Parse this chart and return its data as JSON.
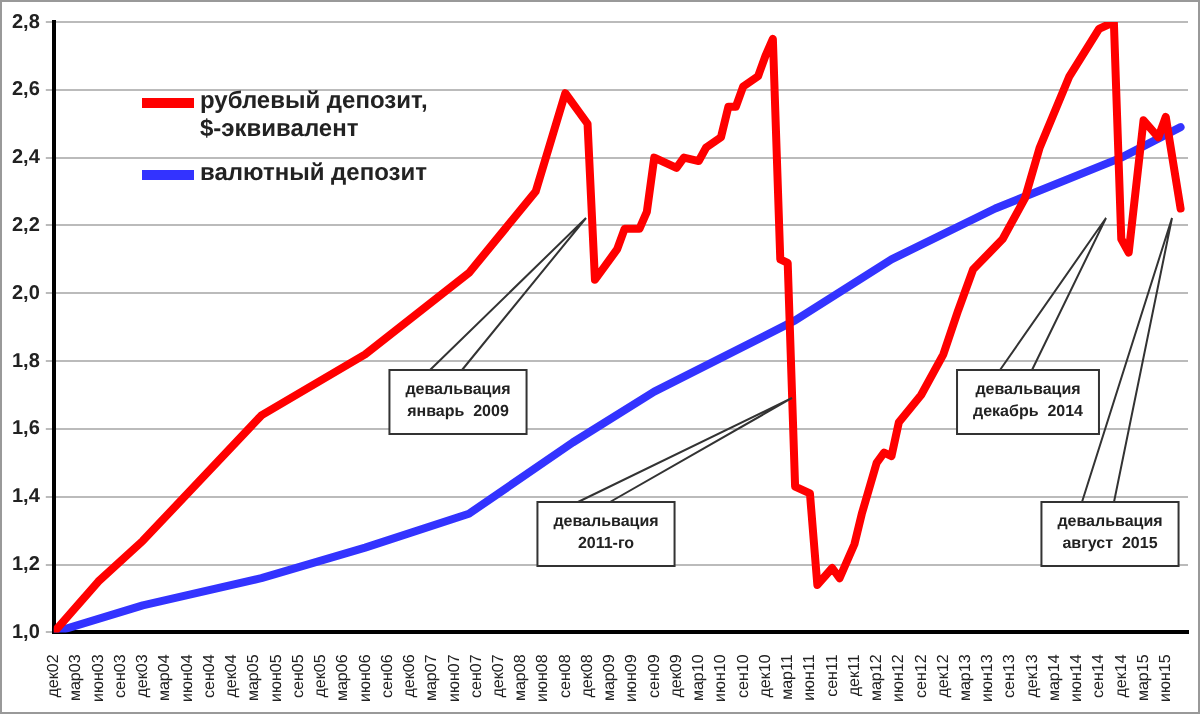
{
  "chart_data": {
    "type": "line",
    "legend": "top left",
    "grid": "y",
    "marker": "none",
    "line_style": "solid",
    "xlim": [
      "2002-12",
      "2015-09"
    ],
    "xticks": [
      {
        "value": "2002-12",
        "label": "дек02"
      },
      {
        "value": "2003-03",
        "label": "мар03"
      },
      {
        "value": "2003-06",
        "label": "июн03"
      },
      {
        "value": "2003-09",
        "label": "сен03"
      },
      {
        "value": "2003-12",
        "label": "дек03"
      },
      {
        "value": "2004-03",
        "label": "мар04"
      },
      {
        "value": "2004-06",
        "label": "июн04"
      },
      {
        "value": "2004-09",
        "label": "сен04"
      },
      {
        "value": "2004-12",
        "label": "дек04"
      },
      {
        "value": "2005-03",
        "label": "мар05"
      },
      {
        "value": "2005-06",
        "label": "июн05"
      },
      {
        "value": "2005-09",
        "label": "сен05"
      },
      {
        "value": "2005-12",
        "label": "дек05"
      },
      {
        "value": "2006-03",
        "label": "мар06"
      },
      {
        "value": "2006-06",
        "label": "июн06"
      },
      {
        "value": "2006-09",
        "label": "сен06"
      },
      {
        "value": "2006-12",
        "label": "дек06"
      },
      {
        "value": "2007-03",
        "label": "мар07"
      },
      {
        "value": "2007-06",
        "label": "июн07"
      },
      {
        "value": "2007-09",
        "label": "сен07"
      },
      {
        "value": "2007-12",
        "label": "дек07"
      },
      {
        "value": "2008-03",
        "label": "мар08"
      },
      {
        "value": "2008-06",
        "label": "июн08"
      },
      {
        "value": "2008-09",
        "label": "сен08"
      },
      {
        "value": "2008-12",
        "label": "дек08"
      },
      {
        "value": "2009-03",
        "label": "мар09"
      },
      {
        "value": "2009-06",
        "label": "июн09"
      },
      {
        "value": "2009-09",
        "label": "сен09"
      },
      {
        "value": "2009-12",
        "label": "дек09"
      },
      {
        "value": "2010-03",
        "label": "мар10"
      },
      {
        "value": "2010-06",
        "label": "июн10"
      },
      {
        "value": "2010-09",
        "label": "сен10"
      },
      {
        "value": "2010-12",
        "label": "дек10"
      },
      {
        "value": "2011-03",
        "label": "мар11"
      },
      {
        "value": "2011-06",
        "label": "июн11"
      },
      {
        "value": "2011-09",
        "label": "сен11"
      },
      {
        "value": "2011-12",
        "label": "дек11"
      },
      {
        "value": "2012-03",
        "label": "мар12"
      },
      {
        "value": "2012-06",
        "label": "июн12"
      },
      {
        "value": "2012-09",
        "label": "сен12"
      },
      {
        "value": "2012-12",
        "label": "дек12"
      },
      {
        "value": "2013-03",
        "label": "мар13"
      },
      {
        "value": "2013-06",
        "label": "июн13"
      },
      {
        "value": "2013-09",
        "label": "сен13"
      },
      {
        "value": "2013-12",
        "label": "дек13"
      },
      {
        "value": "2014-03",
        "label": "мар14"
      },
      {
        "value": "2014-06",
        "label": "июн14"
      },
      {
        "value": "2014-09",
        "label": "сен14"
      },
      {
        "value": "2014-12",
        "label": "дек14"
      },
      {
        "value": "2015-03",
        "label": "мар15"
      },
      {
        "value": "2015-06",
        "label": "июн15"
      }
    ],
    "ylim": [
      1.0,
      2.8
    ],
    "yticks": [
      {
        "value": 1,
        "label": "1,0"
      },
      {
        "value": 1.2,
        "label": "1,2"
      },
      {
        "value": 1.4,
        "label": "1,4"
      },
      {
        "value": 1.6,
        "label": "1,6"
      },
      {
        "value": 1.8,
        "label": "1,8"
      },
      {
        "value": 2,
        "label": "2,0"
      },
      {
        "value": 2.2,
        "label": "2,2"
      },
      {
        "value": 2.4,
        "label": "2,4"
      },
      {
        "value": 2.6,
        "label": "2,6"
      },
      {
        "value": 2.8,
        "label": "2,8"
      }
    ],
    "series": [
      {
        "name": "рублевый депозит, $-эквивалент",
        "color": "#ff0000",
        "x": [
          "2002-12",
          "2003-06",
          "2003-12",
          "2005-04",
          "2006-06",
          "2007-08",
          "2008-05",
          "2008-09",
          "2008-12",
          "2009-01",
          "2009-04",
          "2009-05",
          "2009-07",
          "2009-08",
          "2009-09",
          "2009-12",
          "2010-01",
          "2010-03",
          "2010-04",
          "2010-06",
          "2010-07",
          "2010-08",
          "2010-09",
          "2010-11",
          "2010-12",
          "2011-01",
          "2011-02",
          "2011-03",
          "2011-04",
          "2011-06",
          "2011-07",
          "2011-09",
          "2011-10",
          "2011-12",
          "2012-01",
          "2012-03",
          "2012-04",
          "2012-05",
          "2012-06",
          "2012-09",
          "2012-12",
          "2013-02",
          "2013-04",
          "2013-08",
          "2013-11",
          "2014-01",
          "2014-05",
          "2014-09",
          "2014-11",
          "2014-12",
          "2015-01",
          "2015-03",
          "2015-05",
          "2015-06",
          "2015-08"
        ],
        "values": [
          1.0,
          1.15,
          1.27,
          1.64,
          1.82,
          2.06,
          2.3,
          2.59,
          2.5,
          2.04,
          2.13,
          2.19,
          2.19,
          2.24,
          2.4,
          2.37,
          2.4,
          2.39,
          2.43,
          2.46,
          2.55,
          2.55,
          2.61,
          2.64,
          2.7,
          2.75,
          2.1,
          2.09,
          1.43,
          1.41,
          1.14,
          1.19,
          1.16,
          1.26,
          1.35,
          1.5,
          1.53,
          1.52,
          1.62,
          1.7,
          1.82,
          1.95,
          2.07,
          2.16,
          2.28,
          2.43,
          2.64,
          2.78,
          2.8,
          2.16,
          2.12,
          2.51,
          2.46,
          2.52,
          2.25
        ]
      },
      {
        "name": "валютный депозит",
        "color": "#3333ff",
        "x": [
          "2002-12",
          "2003-12",
          "2005-04",
          "2006-06",
          "2007-08",
          "2008-10",
          "2009-09",
          "2011-04",
          "2012-05",
          "2013-07",
          "2014-12",
          "2015-08"
        ],
        "values": [
          1.0,
          1.08,
          1.16,
          1.25,
          1.35,
          1.56,
          1.71,
          1.92,
          2.1,
          2.25,
          2.4,
          2.49
        ]
      }
    ],
    "annotations": [
      "девальвация\nянварь  2009",
      "девальвация\n2011-го",
      "девальвация\nдекабрь  2014",
      "девальвация\nавгуст  2015"
    ]
  }
}
